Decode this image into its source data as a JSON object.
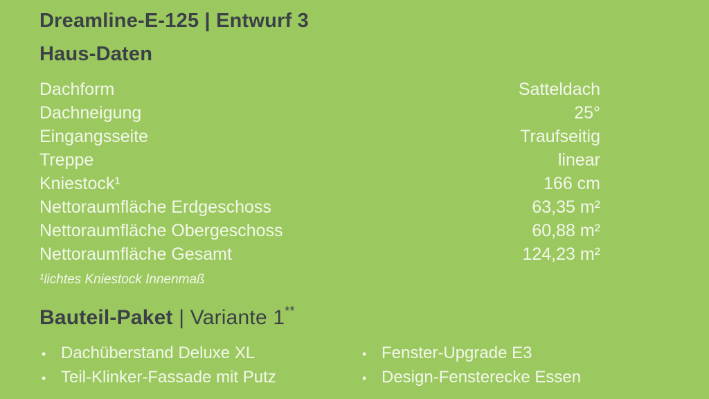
{
  "colors": {
    "background": "#9CC95F",
    "heading": "#3B4146",
    "text": "#F2F7EB"
  },
  "slide": {
    "title": "Dreamline-E-125 | Entwurf 3"
  },
  "haus_daten": {
    "heading": "Haus-Daten",
    "rows": [
      {
        "label": "Dachform",
        "value": "Satteldach"
      },
      {
        "label": "Dachneigung",
        "value": "25°"
      },
      {
        "label": "Eingangsseite",
        "value": "Traufseitig"
      },
      {
        "label": "Treppe",
        "value": "linear"
      },
      {
        "label": "Kniestock¹",
        "value": "166 cm"
      },
      {
        "label": "Nettoraumfläche Erdgeschoss",
        "value": "63,35 m²"
      },
      {
        "label": "Nettoraumfläche Obergeschoss",
        "value": "60,88 m²"
      },
      {
        "label": "Nettoraumfläche Gesamt",
        "value": "124,23 m²"
      }
    ],
    "footnote": "¹lichtes Kniestock Innenmaß"
  },
  "bauteil_paket": {
    "heading_bold": "Bauteil-Paket",
    "heading_rest": " | Variante 1",
    "heading_sup": "**",
    "bullet": "•",
    "left_items": [
      "Dachüberstand Deluxe XL",
      "Teil-Klinker-Fassade mit Putz"
    ],
    "right_items": [
      "Fenster-Upgrade E3",
      "Design-Fensterecke Essen"
    ]
  }
}
